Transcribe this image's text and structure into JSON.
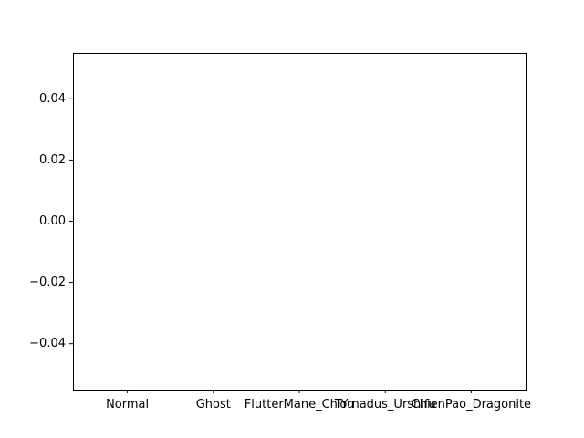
{
  "chart_data": {
    "type": "bar",
    "categories": [
      "Normal",
      "Ghost",
      "FlutterMane_ChiYu",
      "Tornadus_Urshifu",
      "ChienPao_Dragonite"
    ],
    "values": [
      0,
      0,
      0,
      0,
      0
    ],
    "title": "",
    "xlabel": "",
    "ylabel": "",
    "ylim": [
      -0.055,
      0.055
    ],
    "yticks": [
      -0.04,
      -0.02,
      0.0,
      0.02,
      0.04
    ],
    "ytick_labels": [
      "−0.04",
      "−0.02",
      "0.00",
      "0.02",
      "0.04"
    ],
    "grid": false,
    "legend": "none",
    "colors": {
      "axis": "#000000",
      "background": "#ffffff",
      "bar": "#1f77b4"
    }
  }
}
